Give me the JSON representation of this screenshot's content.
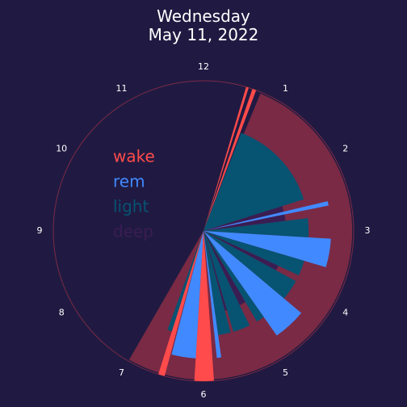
{
  "chart_data": {
    "type": "polar-bar",
    "title": [
      "Wednesday",
      "May 11, 2022"
    ],
    "theta_unit": "hour",
    "theta_ticks": [
      12,
      1,
      2,
      3,
      4,
      5,
      6,
      7,
      8,
      9,
      10,
      11
    ],
    "clock_hours": 12,
    "stage_radius": {
      "wake": 1.0,
      "rem": 0.85,
      "light": 0.7,
      "deep": 0.55
    },
    "legend": {
      "placement": "left-center",
      "entries": [
        {
          "name": "wake",
          "color": "#ff4b4b"
        },
        {
          "name": "rem",
          "color": "#4189ff"
        },
        {
          "name": "light",
          "color": "#075372"
        },
        {
          "name": "deep",
          "color": "#3a1d52"
        }
      ]
    },
    "background_ring_color": "#7a2a44",
    "background_ring_radius": 0.99,
    "background_ring_span": [
      "00:45",
      "07:00"
    ],
    "circle_outline_color": "#7a2a44",
    "segments": [
      {
        "stage": "wake",
        "start": "00:33",
        "end": "00:35"
      },
      {
        "stage": "wake",
        "start": "00:38",
        "end": "00:41"
      },
      {
        "stage": "light",
        "start": "00:42",
        "end": "02:25"
      },
      {
        "stage": "deep",
        "start": "02:25",
        "end": "02:33"
      },
      {
        "stage": "rem",
        "start": "02:33",
        "end": "02:37"
      },
      {
        "stage": "deep",
        "start": "02:37",
        "end": "02:46"
      },
      {
        "stage": "light",
        "start": "02:46",
        "end": "03:07"
      },
      {
        "stage": "rem",
        "start": "03:07",
        "end": "03:33"
      },
      {
        "stage": "light",
        "start": "03:33",
        "end": "03:50"
      },
      {
        "stage": "deep",
        "start": "03:50",
        "end": "03:57"
      },
      {
        "stage": "light",
        "start": "03:57",
        "end": "04:20"
      },
      {
        "stage": "rem",
        "start": "04:20",
        "end": "04:50"
      },
      {
        "stage": "light",
        "start": "04:50",
        "end": "04:59"
      },
      {
        "stage": "deep",
        "start": "04:59",
        "end": "05:08"
      },
      {
        "stage": "light",
        "start": "05:08",
        "end": "05:27"
      },
      {
        "stage": "deep",
        "start": "05:27",
        "end": "05:30"
      },
      {
        "stage": "light",
        "start": "05:30",
        "end": "05:44"
      },
      {
        "stage": "rem",
        "start": "05:44",
        "end": "05:48"
      },
      {
        "stage": "wake",
        "start": "05:52",
        "end": "06:07"
      },
      {
        "stage": "rem",
        "start": "06:07",
        "end": "06:29"
      },
      {
        "stage": "wake",
        "start": "06:30",
        "end": "06:35"
      },
      {
        "stage": "light",
        "start": "06:35",
        "end": "06:40"
      }
    ]
  }
}
